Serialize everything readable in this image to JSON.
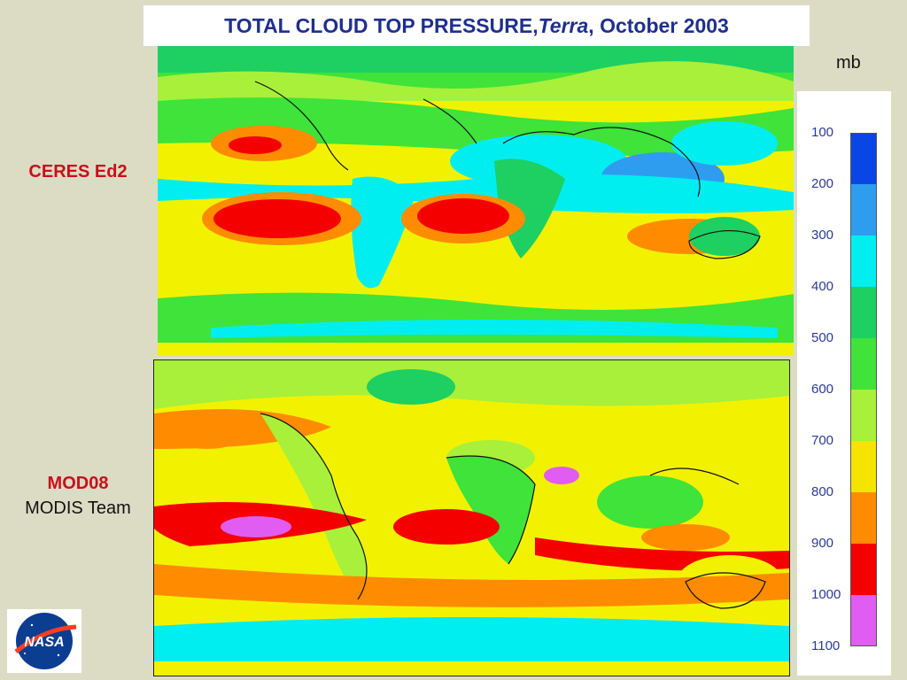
{
  "title": {
    "main": "TOTAL CLOUD TOP PRESSURE, ",
    "italic": "Terra",
    "tail": ", October 2003"
  },
  "panels": [
    {
      "label": "CERES Ed2",
      "sublabel": ""
    },
    {
      "label": "MOD08",
      "sublabel": "MODIS Team"
    }
  ],
  "colorbar": {
    "unit": "mb",
    "ticks": [
      "100",
      "200",
      "300",
      "400",
      "500",
      "600",
      "700",
      "800",
      "900",
      "1000",
      "1100"
    ],
    "colors": [
      "#0a46e6",
      "#2e9df0",
      "#00eef0",
      "#1ecf62",
      "#3fe33a",
      "#a8f03a",
      "#f5e400",
      "#ff8c00",
      "#f50000",
      "#e15cf0",
      "#ffffff"
    ]
  },
  "logo": {
    "text": "NASA"
  }
}
